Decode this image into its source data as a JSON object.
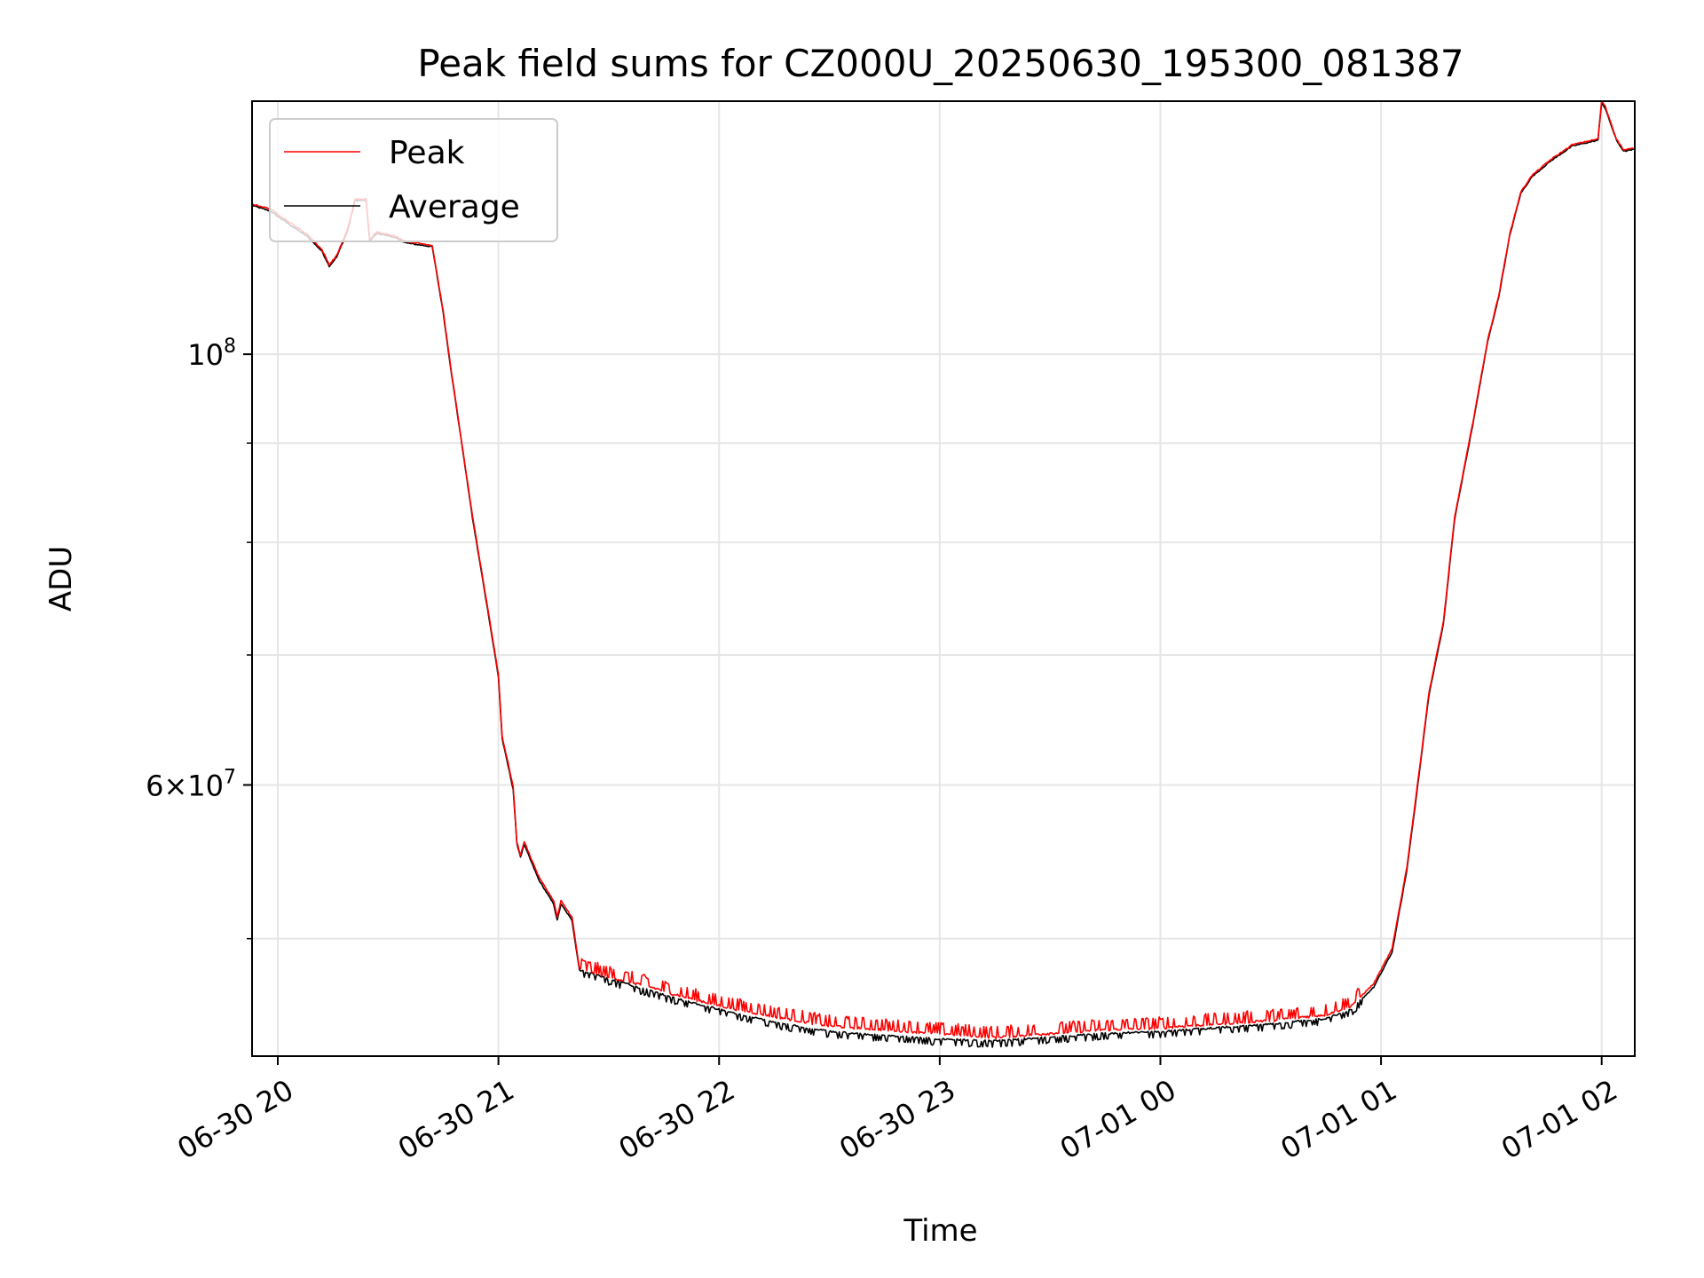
{
  "chart_data": {
    "type": "line",
    "title": "Peak field sums for CZ000U_20250630_195300_081387",
    "xlabel": "Time",
    "ylabel": "ADU",
    "yscale": "log",
    "grid": true,
    "legend_placement": "top-left",
    "xlim": [
      "2025-06-30 19:53",
      "2025-07-01 02:09"
    ],
    "ylim": [
      43500000,
      135000000
    ],
    "x_ticks": [
      {
        "time": "2025-06-30 20:00",
        "label": "06-30 20"
      },
      {
        "time": "2025-06-30 21:00",
        "label": "06-30 21"
      },
      {
        "time": "2025-06-30 22:00",
        "label": "06-30 22"
      },
      {
        "time": "2025-06-30 23:00",
        "label": "06-30 23"
      },
      {
        "time": "2025-07-01 00:00",
        "label": "07-01 00"
      },
      {
        "time": "2025-07-01 01:00",
        "label": "07-01 01"
      },
      {
        "time": "2025-07-01 02:00",
        "label": "07-01 02"
      }
    ],
    "y_major_ticks": [
      {
        "value": 60000000,
        "mantissa": "6",
        "times": "×",
        "base": "10",
        "exponent": "7"
      },
      {
        "value": 100000000,
        "mantissa": "",
        "times": "",
        "base": "10",
        "exponent": "8"
      }
    ],
    "y_minor_ticks": [
      50000000,
      70000000,
      80000000,
      90000000
    ],
    "series": [
      {
        "name": "Peak",
        "color": "#ff0000",
        "points": [
          [
            "2025-06-30 19:53",
            119500000
          ],
          [
            "2025-06-30 19:58",
            118800000
          ],
          [
            "2025-06-30 20:03",
            117000000
          ],
          [
            "2025-06-30 20:08",
            115300000
          ],
          [
            "2025-06-30 20:12",
            113200000
          ],
          [
            "2025-06-30 20:14",
            111200000
          ],
          [
            "2025-06-30 20:16",
            112400000
          ],
          [
            "2025-06-30 20:19",
            116000000
          ],
          [
            "2025-06-30 20:21",
            120200000
          ],
          [
            "2025-06-30 20:24",
            120200000
          ],
          [
            "2025-06-30 20:25",
            114600000
          ],
          [
            "2025-06-30 20:27",
            115600000
          ],
          [
            "2025-06-30 20:31",
            115200000
          ],
          [
            "2025-06-30 20:35",
            114300000
          ],
          [
            "2025-06-30 20:42",
            113800000
          ],
          [
            "2025-06-30 20:45",
            105200000
          ],
          [
            "2025-06-30 20:47",
            98600000
          ],
          [
            "2025-06-30 20:50",
            90100000
          ],
          [
            "2025-06-30 20:53",
            82400000
          ],
          [
            "2025-06-30 20:57",
            74200000
          ],
          [
            "2025-06-30 21:00",
            68400000
          ],
          [
            "2025-06-30 21:01",
            63600000
          ],
          [
            "2025-06-30 21:04",
            59900000
          ],
          [
            "2025-06-30 21:05",
            56100000
          ],
          [
            "2025-06-30 21:06",
            55200000
          ],
          [
            "2025-06-30 21:07",
            56100000
          ],
          [
            "2025-06-30 21:11",
            53800000
          ],
          [
            "2025-06-30 21:15",
            52300000
          ],
          [
            "2025-06-30 21:16",
            51300000
          ],
          [
            "2025-06-30 21:17",
            52300000
          ],
          [
            "2025-06-30 21:20",
            51300000
          ],
          [
            "2025-06-30 21:22",
            48300000
          ],
          [
            "2025-06-30 21:30",
            47800000
          ],
          [
            "2025-06-30 21:40",
            47300000
          ],
          [
            "2025-06-30 21:50",
            46700000
          ],
          [
            "2025-06-30 22:00",
            46200000
          ],
          [
            "2025-06-30 22:15",
            45600000
          ],
          [
            "2025-06-30 22:30",
            45100000
          ],
          [
            "2025-06-30 22:45",
            44900000
          ],
          [
            "2025-06-30 23:00",
            44700000
          ],
          [
            "2025-06-30 23:15",
            44500000
          ],
          [
            "2025-06-30 23:30",
            44700000
          ],
          [
            "2025-06-30 23:45",
            44900000
          ],
          [
            "2025-07-01 00:00",
            45000000
          ],
          [
            "2025-07-01 00:15",
            45200000
          ],
          [
            "2025-07-01 00:30",
            45400000
          ],
          [
            "2025-07-01 00:45",
            45700000
          ],
          [
            "2025-07-01 00:52",
            46200000
          ],
          [
            "2025-07-01 00:58",
            47400000
          ],
          [
            "2025-07-01 01:03",
            49400000
          ],
          [
            "2025-07-01 01:07",
            54400000
          ],
          [
            "2025-07-01 01:10",
            60200000
          ],
          [
            "2025-07-01 01:13",
            66900000
          ],
          [
            "2025-07-01 01:17",
            72900000
          ],
          [
            "2025-07-01 01:20",
            82400000
          ],
          [
            "2025-07-01 01:25",
            92300000
          ],
          [
            "2025-07-01 01:29",
            101700000
          ],
          [
            "2025-07-01 01:32",
            107200000
          ],
          [
            "2025-07-01 01:35",
            115300000
          ],
          [
            "2025-07-01 01:38",
            121200000
          ],
          [
            "2025-07-01 01:41",
            123600000
          ],
          [
            "2025-07-01 01:46",
            125900000
          ],
          [
            "2025-07-01 01:52",
            128200000
          ],
          [
            "2025-07-01 01:59",
            129100000
          ],
          [
            "2025-07-01 02:00",
            135100000
          ],
          [
            "2025-07-01 02:01",
            134100000
          ],
          [
            "2025-07-01 02:04",
            129100000
          ],
          [
            "2025-07-01 02:06",
            127400000
          ],
          [
            "2025-07-01 02:09",
            127700000
          ]
        ]
      },
      {
        "name": "Average",
        "color": "#000000",
        "points": [
          [
            "2025-06-30 19:53",
            119300000
          ],
          [
            "2025-06-30 19:58",
            118500000
          ],
          [
            "2025-06-30 20:03",
            116700000
          ],
          [
            "2025-06-30 20:08",
            115000000
          ],
          [
            "2025-06-30 20:12",
            113000000
          ],
          [
            "2025-06-30 20:14",
            111000000
          ],
          [
            "2025-06-30 20:16",
            112200000
          ],
          [
            "2025-06-30 20:19",
            115800000
          ],
          [
            "2025-06-30 20:21",
            120000000
          ],
          [
            "2025-06-30 20:24",
            120000000
          ],
          [
            "2025-06-30 20:25",
            114400000
          ],
          [
            "2025-06-30 20:27",
            115400000
          ],
          [
            "2025-06-30 20:31",
            115000000
          ],
          [
            "2025-06-30 20:35",
            114100000
          ],
          [
            "2025-06-30 20:42",
            113600000
          ],
          [
            "2025-06-30 20:45",
            105000000
          ],
          [
            "2025-06-30 20:47",
            98400000
          ],
          [
            "2025-06-30 20:50",
            90000000
          ],
          [
            "2025-06-30 20:53",
            82200000
          ],
          [
            "2025-06-30 20:57",
            74000000
          ],
          [
            "2025-06-30 21:00",
            68200000
          ],
          [
            "2025-06-30 21:01",
            63400000
          ],
          [
            "2025-06-30 21:04",
            59700000
          ],
          [
            "2025-06-30 21:05",
            56000000
          ],
          [
            "2025-06-30 21:06",
            55100000
          ],
          [
            "2025-06-30 21:07",
            55900000
          ],
          [
            "2025-06-30 21:11",
            53600000
          ],
          [
            "2025-06-30 21:15",
            52100000
          ],
          [
            "2025-06-30 21:16",
            51100000
          ],
          [
            "2025-06-30 21:17",
            52100000
          ],
          [
            "2025-06-30 21:20",
            51100000
          ],
          [
            "2025-06-30 21:22",
            48200000
          ],
          [
            "2025-06-30 21:30",
            47700000
          ],
          [
            "2025-06-30 21:40",
            47100000
          ],
          [
            "2025-06-30 21:50",
            46500000
          ],
          [
            "2025-06-30 22:00",
            46000000
          ],
          [
            "2025-06-30 22:15",
            45300000
          ],
          [
            "2025-06-30 22:30",
            44800000
          ],
          [
            "2025-06-30 22:45",
            44600000
          ],
          [
            "2025-06-30 23:00",
            44400000
          ],
          [
            "2025-06-30 23:15",
            44300000
          ],
          [
            "2025-06-30 23:30",
            44500000
          ],
          [
            "2025-06-30 23:45",
            44700000
          ],
          [
            "2025-07-01 00:00",
            44800000
          ],
          [
            "2025-07-01 00:15",
            45000000
          ],
          [
            "2025-07-01 00:30",
            45200000
          ],
          [
            "2025-07-01 00:45",
            45500000
          ],
          [
            "2025-07-01 00:52",
            46000000
          ],
          [
            "2025-07-01 00:58",
            47200000
          ],
          [
            "2025-07-01 01:03",
            49200000
          ],
          [
            "2025-07-01 01:07",
            54200000
          ],
          [
            "2025-07-01 01:10",
            60000000
          ],
          [
            "2025-07-01 01:13",
            66700000
          ],
          [
            "2025-07-01 01:17",
            72700000
          ],
          [
            "2025-07-01 01:20",
            82200000
          ],
          [
            "2025-07-01 01:25",
            92100000
          ],
          [
            "2025-07-01 01:29",
            101500000
          ],
          [
            "2025-07-01 01:32",
            107000000
          ],
          [
            "2025-07-01 01:35",
            115100000
          ],
          [
            "2025-07-01 01:38",
            121000000
          ],
          [
            "2025-07-01 01:41",
            123400000
          ],
          [
            "2025-07-01 01:46",
            125700000
          ],
          [
            "2025-07-01 01:52",
            128000000
          ],
          [
            "2025-07-01 01:59",
            128900000
          ],
          [
            "2025-07-01 02:00",
            134800000
          ],
          [
            "2025-07-01 02:01",
            133800000
          ],
          [
            "2025-07-01 02:04",
            128900000
          ],
          [
            "2025-07-01 02:06",
            127200000
          ],
          [
            "2025-07-01 02:09",
            127500000
          ]
        ]
      }
    ]
  }
}
